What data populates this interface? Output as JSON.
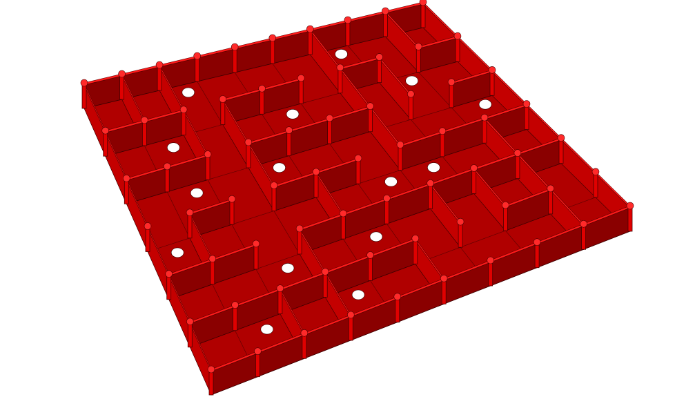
{
  "model": {
    "kind": "maze-grid",
    "rows": 6,
    "cols": 9,
    "color_main": "#ff1a1a",
    "color_shadow": "#8a0000",
    "color_side": "#c40000",
    "background": "#ffffff"
  }
}
